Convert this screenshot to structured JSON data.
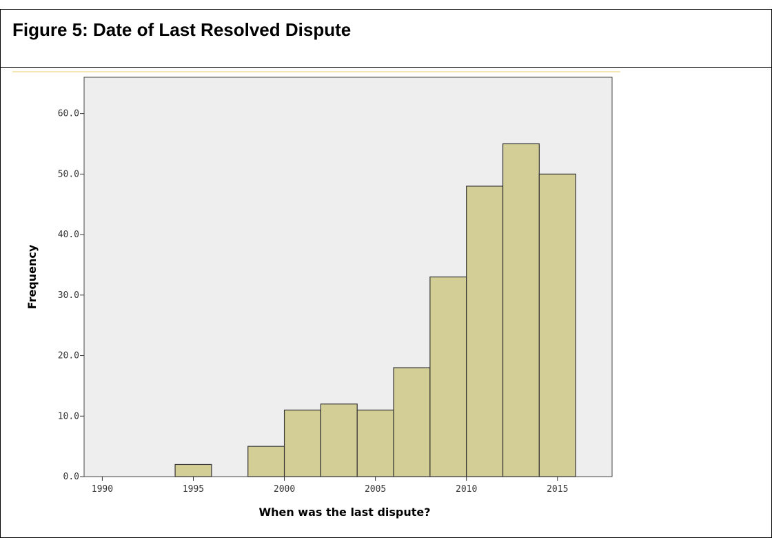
{
  "figure": {
    "title": "Figure 5: Date of Last Resolved Dispute"
  },
  "colors": {
    "plot_background": "#eeeeee",
    "bar_fill": "#d3cd96",
    "bar_stroke": "#333333"
  },
  "chart_data": {
    "type": "bar",
    "title": "",
    "xlabel": "When was the last dispute?",
    "ylabel": "Frequency",
    "bin_width": 2,
    "bins_start": [
      1994,
      1998,
      2000,
      2002,
      2004,
      2006,
      2008,
      2010,
      2012,
      2014
    ],
    "values": [
      2,
      5,
      11,
      12,
      11,
      18,
      33,
      48,
      55,
      50
    ],
    "xlim": [
      1989,
      2018
    ],
    "ylim": [
      0,
      66
    ],
    "x_ticks": [
      1990,
      1995,
      2000,
      2005,
      2010,
      2015
    ],
    "y_ticks": [
      0,
      10,
      20,
      30,
      40,
      50,
      60
    ],
    "y_tick_labels": [
      "0.0",
      "10.0",
      "20.0",
      "30.0",
      "40.0",
      "50.0",
      "60.0"
    ],
    "grid": false,
    "legend": "none"
  }
}
